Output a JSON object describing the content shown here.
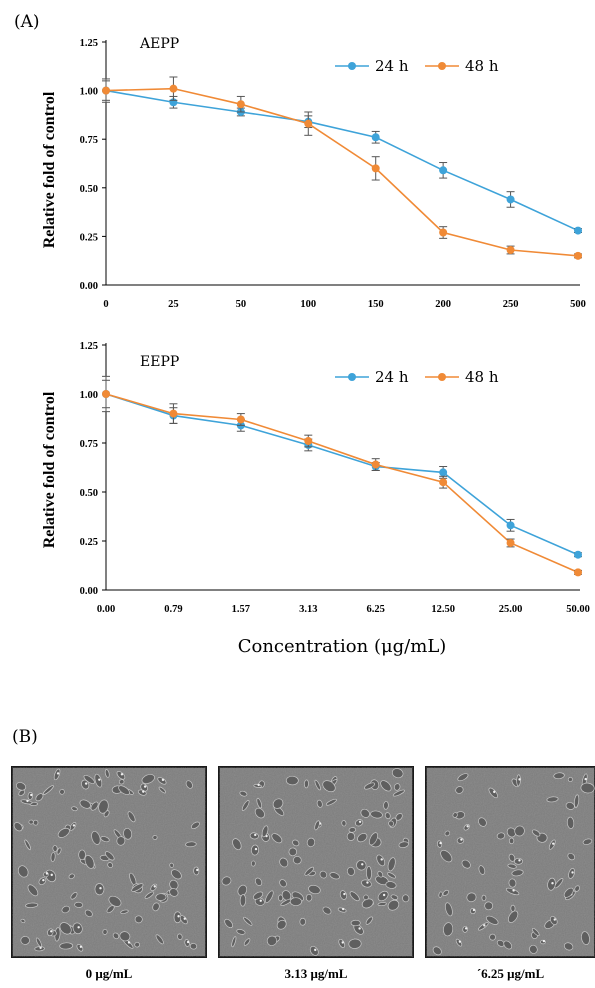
{
  "panels": {
    "a_label": "(A)",
    "b_label": "(B)"
  },
  "colors": {
    "24h": "#3ea3d9",
    "48h": "#f08a36",
    "error": "#6a6a6a"
  },
  "chart_data": [
    {
      "type": "line",
      "title": "AEPP",
      "categories": [
        "0",
        "25",
        "50",
        "100",
        "150",
        "200",
        "250",
        "500"
      ],
      "ylabel": "Relative fold of control",
      "xlabel": "",
      "ylim": [
        0,
        1.25
      ],
      "yticks": [
        "0.00",
        "0.25",
        "0.50",
        "0.75",
        "1.00",
        "1.25"
      ],
      "grid": false,
      "legend": "top-right",
      "series": [
        {
          "name": "24 h",
          "color": "#3ea3d9",
          "values": [
            1.0,
            0.94,
            0.89,
            0.84,
            0.76,
            0.59,
            0.44,
            0.28
          ],
          "errors": [
            0.05,
            0.03,
            0.02,
            0.03,
            0.03,
            0.04,
            0.04,
            0.01
          ]
        },
        {
          "name": "48 h",
          "color": "#f08a36",
          "values": [
            1.0,
            1.01,
            0.93,
            0.83,
            0.6,
            0.27,
            0.18,
            0.15
          ],
          "errors": [
            0.06,
            0.06,
            0.04,
            0.06,
            0.06,
            0.03,
            0.02,
            0.01
          ]
        }
      ]
    },
    {
      "type": "line",
      "title": "EEPP",
      "categories": [
        "0.00",
        "0.79",
        "1.57",
        "3.13",
        "6.25",
        "12.50",
        "25.00",
        "50.00"
      ],
      "ylabel": "Relative fold of control",
      "xlabel": "Concentration (μg/mL)",
      "ylim": [
        0,
        1.25
      ],
      "yticks": [
        "0.00",
        "0.25",
        "0.50",
        "0.75",
        "1.00",
        "1.25"
      ],
      "grid": false,
      "legend": "top-right",
      "series": [
        {
          "name": "24 h",
          "color": "#3ea3d9",
          "values": [
            1.0,
            0.89,
            0.84,
            0.74,
            0.63,
            0.6,
            0.33,
            0.18
          ],
          "errors": [
            0.09,
            0.04,
            0.03,
            0.03,
            0.02,
            0.03,
            0.03,
            0.01
          ]
        },
        {
          "name": "48 h",
          "color": "#f08a36",
          "values": [
            1.0,
            0.9,
            0.87,
            0.76,
            0.64,
            0.55,
            0.24,
            0.09
          ],
          "errors": [
            0.07,
            0.05,
            0.03,
            0.03,
            0.03,
            0.03,
            0.02,
            0.01
          ]
        }
      ]
    }
  ],
  "images": [
    {
      "caption": "0 μg/mL"
    },
    {
      "caption": "3.13 μg/mL"
    },
    {
      "caption": "´6.25 μg/mL"
    }
  ]
}
